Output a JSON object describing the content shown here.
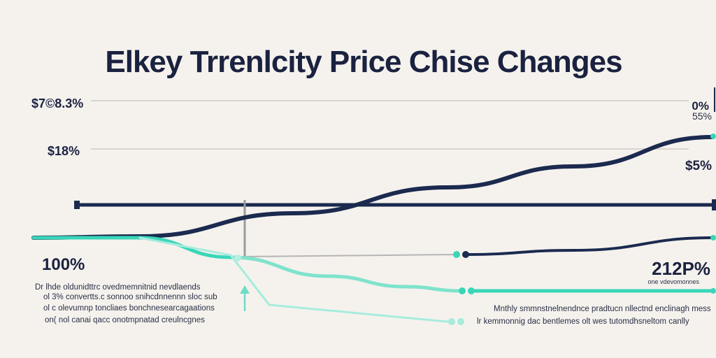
{
  "chart_data": {
    "type": "line",
    "title": "Elkey Trrenlcity Price Chise Changes",
    "xlabel": "",
    "ylabel": "",
    "grid": true,
    "left_labels": [
      "$7©8.3%",
      "$18%",
      "100%"
    ],
    "right_labels": [
      "0%",
      "55%",
      "$5%",
      "212P%"
    ],
    "annotations_left": [
      "Dr lhde oldunidttrc ovedmemnitnid nevdlaends",
      "ol 3% convertts.c sonnoo snihcdnnennn sloc sub",
      "ol c olevumnp toncliaes bonchnesearcagaations",
      "on( nol canai qacc onotmpnatad creulncgnes"
    ],
    "annotations_right": [
      "one vdevomonnes",
      "Mnthly smmnstnelnendnce pradtucn nllectnd enclinagh mess",
      "lr kemmonnig dac bentlemes olt wes tutomdhsneltom canlly"
    ],
    "series": [
      {
        "color": "#1b2a4e",
        "values": [
          0,
          8,
          22,
          38,
          55,
          68,
          80
        ]
      },
      {
        "color": "#3ad6b8",
        "values": [
          0,
          -8,
          -18,
          -34,
          -52,
          -58,
          -60
        ]
      },
      {
        "color": "#1b2a4e",
        "values": [
          -60,
          -55,
          -52,
          -50,
          -48,
          -45,
          -42
        ]
      }
    ],
    "colors": {
      "navy": "#1b2a4e",
      "teal": "#3ad6b8",
      "grid": "#c9c7c4"
    }
  }
}
